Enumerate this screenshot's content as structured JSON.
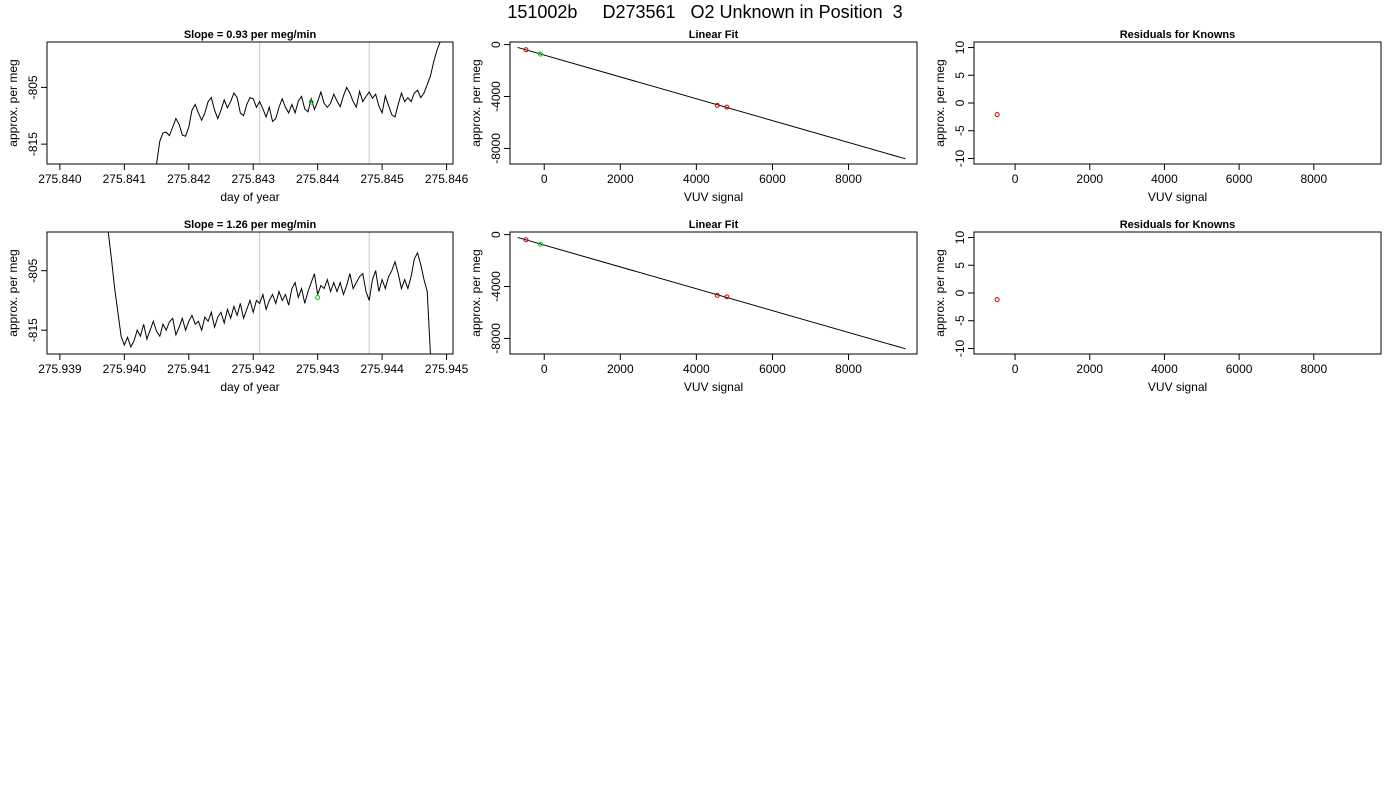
{
  "page_title": "151002b     D273561   O2 Unknown in Position  3",
  "colors": {
    "line": "#000000",
    "known_point": "#cc0000",
    "unknown_point": "#00cc00",
    "marker_line": "#c8c8c8"
  },
  "chart_data": [
    {
      "type": "line",
      "title": "Slope =  0.93  per meg/min",
      "xlabel": "day of year",
      "ylabel": "approx. per meg",
      "xlim": [
        275.8398,
        275.8461
      ],
      "ylim": [
        -818.5,
        -797
      ],
      "xticks": [
        "275.840",
        "275.841",
        "275.842",
        "275.843",
        "275.844",
        "275.845",
        "275.846"
      ],
      "xtick_values": [
        275.84,
        275.841,
        275.842,
        275.843,
        275.844,
        275.845,
        275.846
      ],
      "yticks": [
        "-815",
        "-805"
      ],
      "ytick_values": [
        -815,
        -805
      ],
      "marker_lines_x": [
        275.8431,
        275.8448
      ],
      "unknown_point": {
        "x": 275.8439,
        "y": -807.6
      },
      "series": [
        {
          "values": [
            [
              275.8415,
              -818.5
            ],
            [
              275.84155,
              -814.5
            ],
            [
              275.8416,
              -813.0
            ],
            [
              275.84165,
              -812.9
            ],
            [
              275.8417,
              -813.5
            ],
            [
              275.84175,
              -812.0
            ],
            [
              275.8418,
              -810.5
            ],
            [
              275.84185,
              -811.5
            ],
            [
              275.8419,
              -813.4
            ],
            [
              275.84195,
              -813.6
            ],
            [
              275.842,
              -812.0
            ],
            [
              275.84205,
              -809.0
            ],
            [
              275.8421,
              -808.0
            ],
            [
              275.84215,
              -809.5
            ],
            [
              275.8422,
              -810.8
            ],
            [
              275.84225,
              -809.5
            ],
            [
              275.8423,
              -807.5
            ],
            [
              275.84235,
              -806.8
            ],
            [
              275.8424,
              -809.0
            ],
            [
              275.84245,
              -810.5
            ],
            [
              275.8425,
              -809.0
            ],
            [
              275.84255,
              -807.2
            ],
            [
              275.8426,
              -808.6
            ],
            [
              275.84265,
              -807.5
            ],
            [
              275.8427,
              -806.0
            ],
            [
              275.84275,
              -806.8
            ],
            [
              275.8428,
              -809.5
            ],
            [
              275.84285,
              -810.0
            ],
            [
              275.8429,
              -808.0
            ],
            [
              275.84295,
              -806.8
            ],
            [
              275.843,
              -807.0
            ],
            [
              275.84305,
              -808.5
            ],
            [
              275.8431,
              -807.5
            ],
            [
              275.84315,
              -808.8
            ],
            [
              275.8432,
              -810.2
            ],
            [
              275.84325,
              -808.5
            ],
            [
              275.8433,
              -811.0
            ],
            [
              275.84335,
              -810.5
            ],
            [
              275.8434,
              -808.5
            ],
            [
              275.84345,
              -807.0
            ],
            [
              275.8435,
              -808.5
            ],
            [
              275.84355,
              -809.5
            ],
            [
              275.8436,
              -808.0
            ],
            [
              275.84365,
              -809.5
            ],
            [
              275.8437,
              -807.4
            ],
            [
              275.84375,
              -806.6
            ],
            [
              275.8438,
              -808.8
            ],
            [
              275.84385,
              -809.3
            ],
            [
              275.8439,
              -807.0
            ],
            [
              275.84395,
              -808.9
            ],
            [
              275.844,
              -807.5
            ],
            [
              275.84405,
              -805.8
            ],
            [
              275.8441,
              -807.8
            ],
            [
              275.84415,
              -808.5
            ],
            [
              275.8442,
              -807.8
            ],
            [
              275.84425,
              -806.2
            ],
            [
              275.8443,
              -807.4
            ],
            [
              275.84435,
              -808.4
            ],
            [
              275.8444,
              -806.5
            ],
            [
              275.84445,
              -805.0
            ],
            [
              275.8445,
              -806.0
            ],
            [
              275.84455,
              -807.5
            ],
            [
              275.8446,
              -808.5
            ],
            [
              275.84465,
              -805.7
            ],
            [
              275.8447,
              -807.5
            ],
            [
              275.84475,
              -806.6
            ],
            [
              275.8448,
              -805.8
            ],
            [
              275.84485,
              -806.9
            ],
            [
              275.8449,
              -806.2
            ],
            [
              275.84495,
              -808.3
            ],
            [
              275.845,
              -809.5
            ],
            [
              275.84505,
              -806.5
            ],
            [
              275.8451,
              -808.2
            ],
            [
              275.84515,
              -809.8
            ],
            [
              275.8452,
              -810.2
            ],
            [
              275.84525,
              -808.0
            ],
            [
              275.8453,
              -806.0
            ],
            [
              275.84535,
              -807.5
            ],
            [
              275.8454,
              -806.8
            ],
            [
              275.84545,
              -807.5
            ],
            [
              275.8455,
              -806.0
            ],
            [
              275.84555,
              -805.5
            ],
            [
              275.8456,
              -806.8
            ],
            [
              275.84565,
              -806.0
            ],
            [
              275.8457,
              -804.5
            ],
            [
              275.84575,
              -803.0
            ],
            [
              275.8458,
              -800.5
            ],
            [
              275.84585,
              -798.5
            ],
            [
              275.8459,
              -797.0
            ]
          ]
        }
      ]
    },
    {
      "type": "scatter",
      "title": "Linear Fit",
      "xlabel": "VUV signal",
      "ylabel": "approx. per meg",
      "xlim": [
        -900,
        9800
      ],
      "ylim": [
        -9200,
        200
      ],
      "xticks": [
        "0",
        "2000",
        "4000",
        "6000",
        "8000"
      ],
      "xtick_values": [
        0,
        2000,
        4000,
        6000,
        8000
      ],
      "yticks": [
        "0",
        "-4000",
        "-8000"
      ],
      "ytick_values": [
        0,
        -4000,
        -8000
      ],
      "fit_line": [
        [
          -700,
          -220
        ],
        [
          9500,
          -8800
        ]
      ],
      "known_points": [
        [
          -480,
          -400
        ],
        [
          4550,
          -4680
        ],
        [
          4800,
          -4820
        ]
      ],
      "unknown_points": [
        [
          -100,
          -730
        ]
      ]
    },
    {
      "type": "scatter",
      "title": "Residuals for Knowns",
      "xlabel": "VUV signal",
      "ylabel": "approx. per meg",
      "xlim": [
        -1100,
        9800
      ],
      "ylim": [
        -11,
        11
      ],
      "xticks": [
        "0",
        "2000",
        "4000",
        "6000",
        "8000"
      ],
      "xtick_values": [
        0,
        2000,
        4000,
        6000,
        8000
      ],
      "yticks": [
        "-10",
        "-5",
        "0",
        "5",
        "10"
      ],
      "ytick_values": [
        -10,
        -5,
        0,
        5,
        10
      ],
      "known_points": [
        [
          -480,
          -2.1
        ]
      ]
    },
    {
      "type": "line",
      "title": "Slope =  1.26  per meg/min",
      "xlabel": "day of year",
      "ylabel": "approx. per meg",
      "xlim": [
        275.9388,
        275.9451
      ],
      "ylim": [
        -819,
        -798.5
      ],
      "xticks": [
        "275.939",
        "275.940",
        "275.941",
        "275.942",
        "275.943",
        "275.944",
        "275.945"
      ],
      "xtick_values": [
        275.939,
        275.94,
        275.941,
        275.942,
        275.943,
        275.944,
        275.945
      ],
      "yticks": [
        "-815",
        "-805"
      ],
      "ytick_values": [
        -815,
        -805
      ],
      "marker_lines_x": [
        275.9421,
        275.9438
      ],
      "unknown_point": {
        "x": 275.943,
        "y": -809.5
      },
      "series": [
        {
          "values": [
            [
              275.93975,
              -798.5
            ],
            [
              275.9398,
              -803.0
            ],
            [
              275.93985,
              -808.0
            ],
            [
              275.9399,
              -812.0
            ],
            [
              275.93995,
              -816.0
            ],
            [
              275.94,
              -817.5
            ],
            [
              275.94005,
              -816.2
            ],
            [
              275.9401,
              -817.8
            ],
            [
              275.94015,
              -816.8
            ],
            [
              275.9402,
              -815.0
            ],
            [
              275.94025,
              -816.0
            ],
            [
              275.9403,
              -814.0
            ],
            [
              275.94035,
              -816.5
            ],
            [
              275.9404,
              -815.0
            ],
            [
              275.94045,
              -813.5
            ],
            [
              275.9405,
              -815.2
            ],
            [
              275.94055,
              -816.0
            ],
            [
              275.9406,
              -814.0
            ],
            [
              275.94065,
              -815.0
            ],
            [
              275.9407,
              -813.6
            ],
            [
              275.94075,
              -813.0
            ],
            [
              275.9408,
              -815.8
            ],
            [
              275.94085,
              -814.5
            ],
            [
              275.9409,
              -813.0
            ],
            [
              275.94095,
              -815.0
            ],
            [
              275.941,
              -813.5
            ],
            [
              275.94105,
              -812.5
            ],
            [
              275.9411,
              -814.0
            ],
            [
              275.94115,
              -813.5
            ],
            [
              275.9412,
              -815.0
            ],
            [
              275.94125,
              -812.8
            ],
            [
              275.9413,
              -813.5
            ],
            [
              275.94135,
              -812.0
            ],
            [
              275.9414,
              -814.5
            ],
            [
              275.94145,
              -812.8
            ],
            [
              275.9415,
              -812.0
            ],
            [
              275.94155,
              -813.8
            ],
            [
              275.9416,
              -811.5
            ],
            [
              275.94165,
              -813.0
            ],
            [
              275.9417,
              -811.0
            ],
            [
              275.94175,
              -812.5
            ],
            [
              275.9418,
              -810.5
            ],
            [
              275.94185,
              -813.0
            ],
            [
              275.9419,
              -811.5
            ],
            [
              275.94195,
              -810.0
            ],
            [
              275.942,
              -812.0
            ],
            [
              275.94205,
              -810.0
            ],
            [
              275.9421,
              -810.5
            ],
            [
              275.94215,
              -809.0
            ],
            [
              275.9422,
              -811.5
            ],
            [
              275.94225,
              -810.0
            ],
            [
              275.9423,
              -809.0
            ],
            [
              275.94235,
              -810.5
            ],
            [
              275.9424,
              -808.5
            ],
            [
              275.94245,
              -810.0
            ],
            [
              275.9425,
              -809.0
            ],
            [
              275.94255,
              -810.8
            ],
            [
              275.9426,
              -808.0
            ],
            [
              275.94265,
              -807.0
            ],
            [
              275.9427,
              -809.5
            ],
            [
              275.94275,
              -808.0
            ],
            [
              275.9428,
              -810.5
            ],
            [
              275.94285,
              -808.5
            ],
            [
              275.9429,
              -807.0
            ],
            [
              275.94295,
              -805.5
            ],
            [
              275.943,
              -809.0
            ],
            [
              275.94305,
              -807.5
            ],
            [
              275.9431,
              -808.0
            ],
            [
              275.94315,
              -806.5
            ],
            [
              275.9432,
              -808.5
            ],
            [
              275.94325,
              -807.0
            ],
            [
              275.9433,
              -808.5
            ],
            [
              275.94335,
              -807.0
            ],
            [
              275.9434,
              -809.0
            ],
            [
              275.94345,
              -807.5
            ],
            [
              275.9435,
              -805.5
            ],
            [
              275.94355,
              -808.0
            ],
            [
              275.9436,
              -807.0
            ],
            [
              275.94365,
              -806.0
            ],
            [
              275.9437,
              -805.5
            ],
            [
              275.94375,
              -808.5
            ],
            [
              275.9438,
              -810.0
            ],
            [
              275.94385,
              -806.5
            ],
            [
              275.9439,
              -805.0
            ],
            [
              275.94395,
              -808.5
            ],
            [
              275.944,
              -806.5
            ],
            [
              275.94405,
              -808.0
            ],
            [
              275.9441,
              -806.0
            ],
            [
              275.94415,
              -805.0
            ],
            [
              275.9442,
              -803.5
            ],
            [
              275.94425,
              -805.5
            ],
            [
              275.9443,
              -808.0
            ],
            [
              275.94435,
              -806.5
            ],
            [
              275.9444,
              -808.0
            ],
            [
              275.94445,
              -806.0
            ],
            [
              275.9445,
              -803.0
            ],
            [
              275.94455,
              -802.0
            ],
            [
              275.9446,
              -804.0
            ],
            [
              275.94465,
              -806.5
            ],
            [
              275.9447,
              -808.5
            ],
            [
              275.94475,
              -819.0
            ]
          ]
        }
      ]
    },
    {
      "type": "scatter",
      "title": "Linear Fit",
      "xlabel": "VUV signal",
      "ylabel": "approx. per meg",
      "xlim": [
        -900,
        9800
      ],
      "ylim": [
        -9200,
        200
      ],
      "xticks": [
        "0",
        "2000",
        "4000",
        "6000",
        "8000"
      ],
      "xtick_values": [
        0,
        2000,
        4000,
        6000,
        8000
      ],
      "yticks": [
        "0",
        "-4000",
        "-8000"
      ],
      "ytick_values": [
        0,
        -4000,
        -8000
      ],
      "fit_line": [
        [
          -700,
          -220
        ],
        [
          9500,
          -8800
        ]
      ],
      "known_points": [
        [
          -480,
          -400
        ],
        [
          4550,
          -4680
        ],
        [
          4800,
          -4800
        ]
      ],
      "unknown_points": [
        [
          -100,
          -740
        ]
      ]
    },
    {
      "type": "scatter",
      "title": "Residuals for Knowns",
      "xlabel": "VUV signal",
      "ylabel": "approx. per meg",
      "xlim": [
        -1100,
        9800
      ],
      "ylim": [
        -11,
        11
      ],
      "xticks": [
        "0",
        "2000",
        "4000",
        "6000",
        "8000"
      ],
      "xtick_values": [
        0,
        2000,
        4000,
        6000,
        8000
      ],
      "yticks": [
        "-10",
        "-5",
        "0",
        "5",
        "10"
      ],
      "ytick_values": [
        -10,
        -5,
        0,
        5,
        10
      ],
      "known_points": [
        [
          -480,
          -1.2
        ]
      ]
    }
  ]
}
